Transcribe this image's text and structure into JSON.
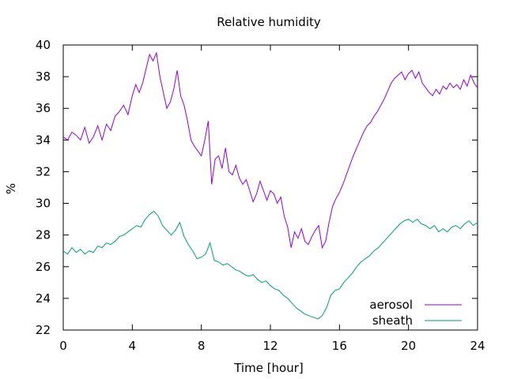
{
  "chart_data": {
    "type": "line",
    "title": "Relative humidity",
    "xlabel": "Time [hour]",
    "ylabel": "%",
    "xlim": [
      0,
      24
    ],
    "ylim": [
      22,
      40
    ],
    "xticks": [
      0,
      4,
      8,
      12,
      16,
      20,
      24
    ],
    "xtick_labels": [
      "0",
      "4",
      "8",
      "12",
      "16",
      "20",
      "24"
    ],
    "yticks": [
      22,
      24,
      26,
      28,
      30,
      32,
      34,
      36,
      38,
      40
    ],
    "ytick_labels": [
      "22",
      "24",
      "26",
      "28",
      "30",
      "32",
      "34",
      "36",
      "38",
      "40"
    ],
    "grid": false,
    "legend_position": "bottom-right",
    "series": [
      {
        "name": "aerosol",
        "color": "#9400d3",
        "points": [
          [
            0.0,
            34.2
          ],
          [
            0.25,
            34.0
          ],
          [
            0.5,
            34.5
          ],
          [
            0.75,
            34.3
          ],
          [
            1.0,
            34.0
          ],
          [
            1.25,
            34.8
          ],
          [
            1.5,
            33.8
          ],
          [
            1.75,
            34.2
          ],
          [
            2.0,
            34.9
          ],
          [
            2.25,
            34.0
          ],
          [
            2.5,
            35.0
          ],
          [
            2.75,
            34.6
          ],
          [
            3.0,
            35.5
          ],
          [
            3.25,
            35.8
          ],
          [
            3.5,
            36.2
          ],
          [
            3.75,
            35.6
          ],
          [
            4.0,
            36.8
          ],
          [
            4.2,
            37.5
          ],
          [
            4.4,
            37.0
          ],
          [
            4.6,
            37.6
          ],
          [
            4.8,
            38.5
          ],
          [
            5.0,
            39.4
          ],
          [
            5.2,
            39.0
          ],
          [
            5.4,
            39.5
          ],
          [
            5.6,
            38.0
          ],
          [
            5.8,
            37.0
          ],
          [
            6.0,
            36.0
          ],
          [
            6.2,
            36.4
          ],
          [
            6.4,
            37.2
          ],
          [
            6.6,
            38.4
          ],
          [
            6.8,
            36.8
          ],
          [
            7.0,
            36.2
          ],
          [
            7.2,
            35.2
          ],
          [
            7.4,
            34.0
          ],
          [
            7.6,
            33.6
          ],
          [
            7.8,
            33.3
          ],
          [
            8.0,
            33.0
          ],
          [
            8.2,
            34.0
          ],
          [
            8.4,
            35.2
          ],
          [
            8.6,
            31.2
          ],
          [
            8.8,
            32.8
          ],
          [
            9.0,
            33.0
          ],
          [
            9.2,
            32.2
          ],
          [
            9.4,
            33.5
          ],
          [
            9.6,
            32.0
          ],
          [
            9.8,
            31.8
          ],
          [
            10.0,
            32.4
          ],
          [
            10.2,
            31.6
          ],
          [
            10.4,
            31.2
          ],
          [
            10.6,
            31.5
          ],
          [
            10.8,
            30.8
          ],
          [
            11.0,
            30.1
          ],
          [
            11.2,
            30.6
          ],
          [
            11.4,
            31.4
          ],
          [
            11.6,
            30.8
          ],
          [
            11.8,
            30.2
          ],
          [
            12.0,
            30.8
          ],
          [
            12.2,
            30.6
          ],
          [
            12.4,
            30.0
          ],
          [
            12.6,
            30.4
          ],
          [
            12.8,
            29.2
          ],
          [
            13.0,
            28.5
          ],
          [
            13.2,
            27.2
          ],
          [
            13.4,
            28.2
          ],
          [
            13.6,
            27.8
          ],
          [
            13.8,
            28.4
          ],
          [
            14.0,
            27.6
          ],
          [
            14.2,
            27.4
          ],
          [
            14.4,
            27.9
          ],
          [
            14.6,
            28.3
          ],
          [
            14.8,
            28.6
          ],
          [
            15.0,
            27.2
          ],
          [
            15.2,
            27.6
          ],
          [
            15.4,
            28.8
          ],
          [
            15.6,
            29.8
          ],
          [
            15.8,
            30.3
          ],
          [
            16.0,
            30.7
          ],
          [
            16.2,
            31.2
          ],
          [
            16.4,
            31.8
          ],
          [
            16.6,
            32.4
          ],
          [
            16.8,
            33.0
          ],
          [
            17.0,
            33.5
          ],
          [
            17.2,
            34.0
          ],
          [
            17.4,
            34.5
          ],
          [
            17.6,
            34.9
          ],
          [
            17.8,
            35.1
          ],
          [
            18.0,
            35.5
          ],
          [
            18.2,
            35.8
          ],
          [
            18.4,
            36.2
          ],
          [
            18.6,
            36.6
          ],
          [
            18.8,
            37.1
          ],
          [
            19.0,
            37.6
          ],
          [
            19.2,
            37.9
          ],
          [
            19.4,
            38.1
          ],
          [
            19.6,
            38.3
          ],
          [
            19.8,
            37.8
          ],
          [
            20.0,
            38.2
          ],
          [
            20.2,
            38.4
          ],
          [
            20.4,
            37.9
          ],
          [
            20.6,
            38.3
          ],
          [
            20.8,
            37.6
          ],
          [
            21.0,
            37.3
          ],
          [
            21.2,
            37.0
          ],
          [
            21.4,
            36.8
          ],
          [
            21.6,
            37.2
          ],
          [
            21.8,
            36.9
          ],
          [
            22.0,
            37.4
          ],
          [
            22.2,
            37.2
          ],
          [
            22.4,
            37.6
          ],
          [
            22.6,
            37.3
          ],
          [
            22.8,
            37.5
          ],
          [
            23.0,
            37.2
          ],
          [
            23.2,
            37.8
          ],
          [
            23.4,
            37.4
          ],
          [
            23.6,
            38.1
          ],
          [
            23.8,
            37.6
          ],
          [
            24.0,
            37.3
          ]
        ]
      },
      {
        "name": "sheath",
        "color": "#009e73",
        "points": [
          [
            0.0,
            27.0
          ],
          [
            0.25,
            26.8
          ],
          [
            0.5,
            27.2
          ],
          [
            0.75,
            26.9
          ],
          [
            1.0,
            27.1
          ],
          [
            1.25,
            26.8
          ],
          [
            1.5,
            27.0
          ],
          [
            1.75,
            26.9
          ],
          [
            2.0,
            27.3
          ],
          [
            2.25,
            27.2
          ],
          [
            2.5,
            27.5
          ],
          [
            2.75,
            27.4
          ],
          [
            3.0,
            27.6
          ],
          [
            3.25,
            27.9
          ],
          [
            3.5,
            28.0
          ],
          [
            3.75,
            28.2
          ],
          [
            4.0,
            28.4
          ],
          [
            4.25,
            28.6
          ],
          [
            4.5,
            28.5
          ],
          [
            4.75,
            29.0
          ],
          [
            5.0,
            29.3
          ],
          [
            5.25,
            29.5
          ],
          [
            5.5,
            29.2
          ],
          [
            5.75,
            28.6
          ],
          [
            6.0,
            28.3
          ],
          [
            6.25,
            28.0
          ],
          [
            6.5,
            28.3
          ],
          [
            6.75,
            28.8
          ],
          [
            7.0,
            27.9
          ],
          [
            7.25,
            27.4
          ],
          [
            7.5,
            27.0
          ],
          [
            7.75,
            26.5
          ],
          [
            8.0,
            26.6
          ],
          [
            8.25,
            26.8
          ],
          [
            8.5,
            27.5
          ],
          [
            8.75,
            26.4
          ],
          [
            9.0,
            26.3
          ],
          [
            9.25,
            26.1
          ],
          [
            9.5,
            26.2
          ],
          [
            9.75,
            26.0
          ],
          [
            10.0,
            25.8
          ],
          [
            10.25,
            25.7
          ],
          [
            10.5,
            25.5
          ],
          [
            10.75,
            25.4
          ],
          [
            11.0,
            25.5
          ],
          [
            11.25,
            25.2
          ],
          [
            11.5,
            25.0
          ],
          [
            11.75,
            25.1
          ],
          [
            12.0,
            24.8
          ],
          [
            12.25,
            24.6
          ],
          [
            12.5,
            24.5
          ],
          [
            12.75,
            24.2
          ],
          [
            13.0,
            24.0
          ],
          [
            13.25,
            23.7
          ],
          [
            13.5,
            23.4
          ],
          [
            13.75,
            23.2
          ],
          [
            14.0,
            23.0
          ],
          [
            14.25,
            22.9
          ],
          [
            14.5,
            22.8
          ],
          [
            14.75,
            22.7
          ],
          [
            15.0,
            22.9
          ],
          [
            15.25,
            23.4
          ],
          [
            15.5,
            24.2
          ],
          [
            15.75,
            24.5
          ],
          [
            16.0,
            24.6
          ],
          [
            16.25,
            25.0
          ],
          [
            16.5,
            25.3
          ],
          [
            16.75,
            25.6
          ],
          [
            17.0,
            26.0
          ],
          [
            17.25,
            26.3
          ],
          [
            17.5,
            26.5
          ],
          [
            17.75,
            26.7
          ],
          [
            18.0,
            27.0
          ],
          [
            18.25,
            27.2
          ],
          [
            18.5,
            27.5
          ],
          [
            18.75,
            27.8
          ],
          [
            19.0,
            28.1
          ],
          [
            19.25,
            28.4
          ],
          [
            19.5,
            28.7
          ],
          [
            19.75,
            28.9
          ],
          [
            20.0,
            29.0
          ],
          [
            20.25,
            28.8
          ],
          [
            20.5,
            29.0
          ],
          [
            20.75,
            28.7
          ],
          [
            21.0,
            28.6
          ],
          [
            21.25,
            28.4
          ],
          [
            21.5,
            28.6
          ],
          [
            21.75,
            28.2
          ],
          [
            22.0,
            28.4
          ],
          [
            22.25,
            28.2
          ],
          [
            22.5,
            28.5
          ],
          [
            22.75,
            28.6
          ],
          [
            23.0,
            28.4
          ],
          [
            23.25,
            28.7
          ],
          [
            23.5,
            28.9
          ],
          [
            23.75,
            28.6
          ],
          [
            24.0,
            28.8
          ]
        ]
      }
    ]
  }
}
